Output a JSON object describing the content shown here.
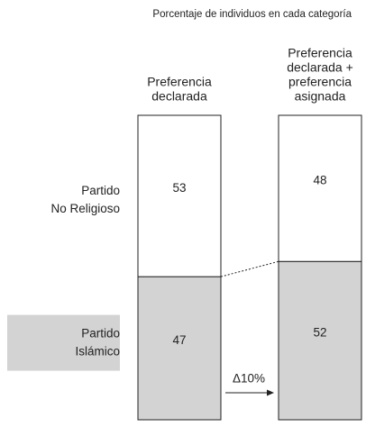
{
  "chart_data": {
    "type": "stacked-bar",
    "subtitle": "Porcentaje de individuos en cada categoría",
    "categories": [
      [
        "Preferencia",
        "declarada"
      ],
      [
        "Preferencia",
        "declarada +",
        "preferencia",
        "asignada"
      ]
    ],
    "series": [
      {
        "name": "Partido Islámico",
        "color": "#d3d3d3",
        "values": [
          47,
          52
        ]
      },
      {
        "name": "Partido No Religioso",
        "color": "#ffffff",
        "values": [
          53,
          48
        ]
      }
    ],
    "annotation": "Δ10%"
  }
}
